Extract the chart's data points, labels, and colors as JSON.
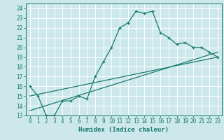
{
  "xlabel": "Humidex (Indice chaleur)",
  "bg_color": "#cce8ea",
  "grid_color": "#ffffff",
  "line_color": "#1a7a6e",
  "xlim": [
    -0.5,
    23.5
  ],
  "ylim": [
    13,
    24.5
  ],
  "xticks": [
    0,
    1,
    2,
    3,
    4,
    5,
    6,
    7,
    8,
    9,
    10,
    11,
    12,
    13,
    14,
    15,
    16,
    17,
    18,
    19,
    20,
    21,
    22,
    23
  ],
  "yticks": [
    13,
    14,
    15,
    16,
    17,
    18,
    19,
    20,
    21,
    22,
    23,
    24
  ],
  "series1_x": [
    0,
    1,
    2,
    3,
    4,
    5,
    6,
    7,
    8,
    9,
    10,
    11,
    12,
    13,
    14,
    15,
    16,
    17,
    18,
    19,
    20,
    21,
    22,
    23
  ],
  "series1_y": [
    16,
    15,
    13,
    13,
    14.5,
    14.5,
    15,
    14.7,
    17,
    18.5,
    20,
    22,
    22.5,
    23.7,
    23.5,
    23.7,
    21.5,
    21,
    20.3,
    20.5,
    20,
    20,
    19.5,
    19
  ],
  "series2_x": [
    0,
    23
  ],
  "series2_y": [
    15,
    19
  ],
  "series3_x": [
    0,
    23
  ],
  "series3_y": [
    13.5,
    19.5
  ]
}
